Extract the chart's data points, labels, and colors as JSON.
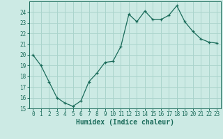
{
  "x": [
    0,
    1,
    2,
    3,
    4,
    5,
    6,
    7,
    8,
    9,
    10,
    11,
    12,
    13,
    14,
    15,
    16,
    17,
    18,
    19,
    20,
    21,
    22,
    23
  ],
  "y": [
    20,
    19,
    17.5,
    16,
    15.5,
    15.2,
    15.7,
    17.5,
    18.3,
    19.3,
    19.4,
    20.8,
    23.8,
    23.1,
    24.1,
    23.3,
    23.3,
    23.7,
    24.6,
    23.1,
    22.2,
    21.5,
    21.2,
    21.1
  ],
  "line_color": "#1a6b5a",
  "marker": "+",
  "bg_color": "#cceae4",
  "grid_color": "#aad4cc",
  "xlabel": "Humidex (Indice chaleur)",
  "xlim": [
    -0.5,
    23.5
  ],
  "ylim": [
    15,
    25
  ],
  "yticks": [
    15,
    16,
    17,
    18,
    19,
    20,
    21,
    22,
    23,
    24
  ],
  "xticks": [
    0,
    1,
    2,
    3,
    4,
    5,
    6,
    7,
    8,
    9,
    10,
    11,
    12,
    13,
    14,
    15,
    16,
    17,
    18,
    19,
    20,
    21,
    22,
    23
  ],
  "xlabel_fontsize": 7,
  "tick_fontsize": 5.5
}
